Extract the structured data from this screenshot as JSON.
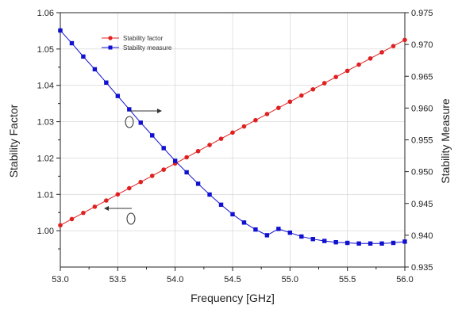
{
  "chart_data": {
    "type": "line",
    "xlabel": "Frequency [GHz]",
    "ylabel_left": "Stability Factor",
    "ylabel_right": "Stability Measure",
    "xlim": [
      53.0,
      56.0
    ],
    "ylim_left": [
      0.99,
      1.06
    ],
    "ylim_right": [
      0.935,
      0.975
    ],
    "x_ticks": [
      "53.0",
      "53.5",
      "54.0",
      "54.5",
      "55.0",
      "55.5",
      "56.0"
    ],
    "y_left_ticks": [
      "1.00",
      "1.01",
      "1.02",
      "1.03",
      "1.04",
      "1.05",
      "1.06"
    ],
    "y_right_ticks": [
      "0.935",
      "0.940",
      "0.945",
      "0.950",
      "0.955",
      "0.960",
      "0.965",
      "0.970",
      "0.975"
    ],
    "grid": true,
    "legend_position": "top-left",
    "x": [
      53.0,
      53.1,
      53.2,
      53.3,
      53.4,
      53.5,
      53.6,
      53.7,
      53.8,
      53.9,
      54.0,
      54.1,
      54.2,
      54.3,
      54.4,
      54.5,
      54.6,
      54.7,
      54.8,
      54.9,
      55.0,
      55.1,
      55.2,
      55.3,
      55.4,
      55.5,
      55.6,
      55.7,
      55.8,
      55.9,
      56.0
    ],
    "series": [
      {
        "name": "Stability factor",
        "axis": "left",
        "color": "#e02020",
        "marker": "circle",
        "values": [
          1.0015,
          1.0032,
          1.0049,
          1.0066,
          1.0083,
          1.01,
          1.0117,
          1.0134,
          1.0151,
          1.0168,
          1.0185,
          1.0202,
          1.0219,
          1.0236,
          1.0253,
          1.027,
          1.0287,
          1.0304,
          1.0321,
          1.0338,
          1.0355,
          1.0372,
          1.0389,
          1.0406,
          1.0423,
          1.044,
          1.0457,
          1.0474,
          1.0491,
          1.0508,
          1.0525
        ]
      },
      {
        "name": "Stability measure",
        "axis": "right",
        "color": "#1010d0",
        "marker": "square",
        "values": [
          0.9722,
          0.9702,
          0.9681,
          0.9661,
          0.964,
          0.9619,
          0.9598,
          0.9577,
          0.9557,
          0.9537,
          0.9517,
          0.9499,
          0.9481,
          0.9464,
          0.9448,
          0.9433,
          0.942,
          0.9409,
          0.94,
          0.941,
          0.9404,
          0.9398,
          0.9394,
          0.9391,
          0.9389,
          0.9388,
          0.9387,
          0.9387,
          0.9387,
          0.9388,
          0.939
        ]
      }
    ]
  },
  "colors": {
    "axis": "#222222",
    "grid": "#d0d0d0",
    "annotation": "#333333"
  }
}
